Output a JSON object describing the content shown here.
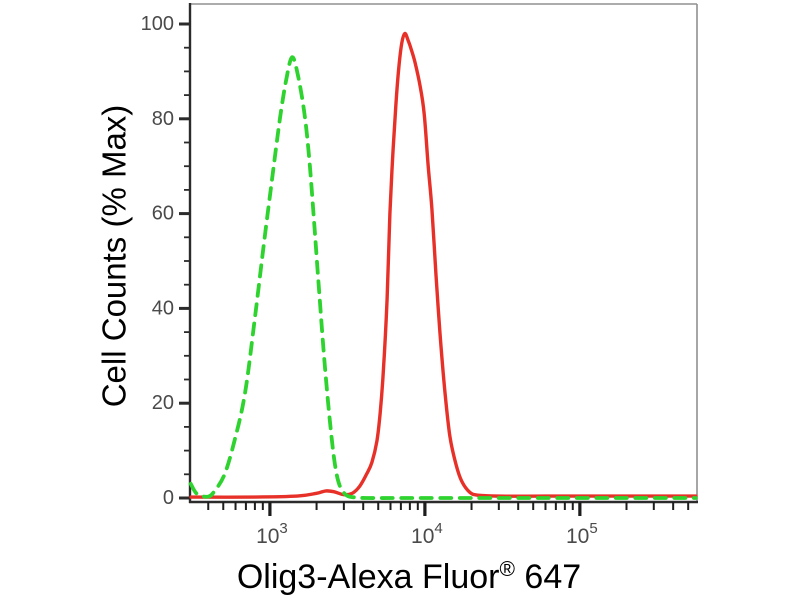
{
  "chart_data": {
    "type": "line",
    "subtype": "flow-cytometry-histogram",
    "title": "",
    "xlabel": {
      "text": "Olig3-Alexa Fluor® 647",
      "prefix": "Olig3-Alexa Fluor",
      "sup": "®",
      "suffix": " 647"
    },
    "ylabel": "Cell Counts (% Max)",
    "x_scale": "log10",
    "xlim": [
      305,
      570000
    ],
    "ylim": [
      0,
      100
    ],
    "grid": false,
    "legend": "none",
    "x_major_ticks": [
      1000,
      10000,
      100000
    ],
    "x_major_tick_labels": [
      {
        "base": "10",
        "exp": "3"
      },
      {
        "base": "10",
        "exp": "4"
      },
      {
        "base": "10",
        "exp": "5"
      }
    ],
    "x_minor_mantissas": [
      2,
      3,
      4,
      5,
      6,
      7,
      8,
      9
    ],
    "y_major_ticks": [
      0,
      20,
      40,
      60,
      80,
      100
    ],
    "y_minor_step": 5,
    "colors": {
      "green_curve": "#2fd32f",
      "red_curve": "#e73128",
      "axis": "#2b2b2b",
      "frame": "#909090",
      "tick_label": "#4a4a4a",
      "title_text": "#000000",
      "background": "#ffffff"
    },
    "series": [
      {
        "name": "red-solid",
        "description": "solid red peak",
        "color": "#e73128",
        "line_style": "solid",
        "peak_x": 7430,
        "peak_y_pct": 98,
        "points": [
          [
            310,
            0.2
          ],
          [
            800,
            0.2
          ],
          [
            1500,
            0.4
          ],
          [
            2000,
            1
          ],
          [
            2300,
            1.5
          ],
          [
            2600,
            1.3
          ],
          [
            3000,
            0.7
          ],
          [
            3400,
            1
          ],
          [
            3800,
            2.5
          ],
          [
            4200,
            5
          ],
          [
            4550,
            7.5
          ],
          [
            4900,
            12
          ],
          [
            5150,
            18
          ],
          [
            5400,
            27
          ],
          [
            5700,
            42
          ],
          [
            5950,
            60
          ],
          [
            6200,
            72
          ],
          [
            6500,
            83
          ],
          [
            6800,
            91
          ],
          [
            7100,
            96
          ],
          [
            7430,
            98
          ],
          [
            7800,
            96.5
          ],
          [
            8100,
            95
          ],
          [
            8620,
            92
          ],
          [
            9300,
            87
          ],
          [
            9900,
            81
          ],
          [
            10500,
            70
          ],
          [
            11100,
            61
          ],
          [
            11800,
            47
          ],
          [
            12500,
            35
          ],
          [
            13500,
            22
          ],
          [
            14500,
            13
          ],
          [
            15900,
            7
          ],
          [
            17300,
            3.5
          ],
          [
            19500,
            1.2
          ],
          [
            22000,
            0.6
          ],
          [
            30000,
            0.4
          ],
          [
            60000,
            0.4
          ],
          [
            150000,
            0.4
          ],
          [
            400000,
            0.4
          ],
          [
            560000,
            0.4
          ]
        ]
      },
      {
        "name": "green-dashed",
        "description": "dashed green peak",
        "color": "#2fd32f",
        "line_style": "dashed",
        "peak_x": 1390,
        "peak_y_pct": 93,
        "points": [
          [
            308,
            3
          ],
          [
            340,
            0.8
          ],
          [
            400,
            0.3
          ],
          [
            440,
            1.5
          ],
          [
            510,
            5
          ],
          [
            590,
            12
          ],
          [
            690,
            22
          ],
          [
            800,
            38
          ],
          [
            925,
            55
          ],
          [
            1030,
            67
          ],
          [
            1160,
            80
          ],
          [
            1270,
            88
          ],
          [
            1390,
            93
          ],
          [
            1520,
            89
          ],
          [
            1680,
            80.5
          ],
          [
            1810,
            70
          ],
          [
            1950,
            56
          ],
          [
            2100,
            41.5
          ],
          [
            2260,
            28
          ],
          [
            2440,
            16
          ],
          [
            2630,
            7
          ],
          [
            2830,
            2.5
          ],
          [
            3140,
            0.5
          ],
          [
            3600,
            0.1
          ],
          [
            4200,
            0
          ],
          [
            8000,
            0
          ],
          [
            20000,
            0
          ],
          [
            60000,
            0
          ],
          [
            200000,
            0
          ],
          [
            560000,
            0
          ]
        ]
      }
    ]
  }
}
